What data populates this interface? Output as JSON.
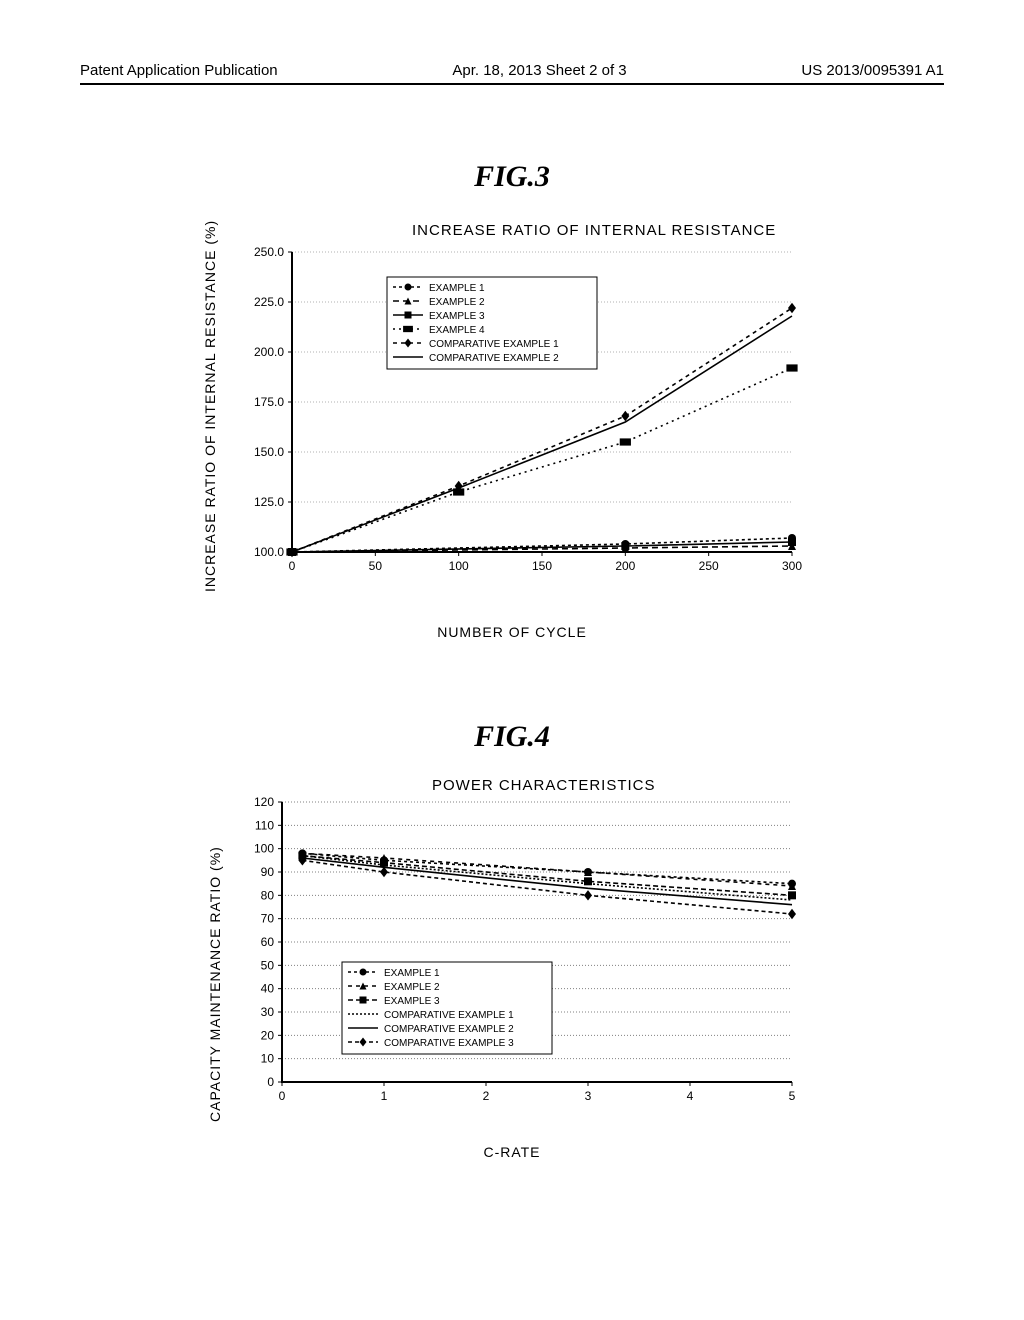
{
  "header": {
    "left": "Patent Application Publication",
    "mid": "Apr. 18, 2013  Sheet 2 of 3",
    "right": "US 2013/0095391 A1"
  },
  "fig3": {
    "label": "FIG.3",
    "chart": {
      "type": "line",
      "title": "INCREASE RATIO OF INTERNAL RESISTANCE",
      "ylabel": "INCREASE RATIO OF INTERNAL RESISTANCE (%)",
      "xlabel": "NUMBER OF CYCLE",
      "xlim": [
        0,
        300
      ],
      "ylim": [
        100,
        250
      ],
      "xtick_step": 50,
      "ytick_step": 25,
      "ytick_labels": [
        "100.0",
        "125.0",
        "150.0",
        "175.0",
        "200.0",
        "225.0",
        "250.0"
      ],
      "xtick_labels": [
        "0",
        "50",
        "100",
        "150",
        "200",
        "250",
        "300"
      ],
      "background_color": "#ffffff",
      "grid_color": "#b0b0b0",
      "axis_color": "#000000",
      "series": [
        {
          "name": "EXAMPLE 1",
          "color": "#000000",
          "dash": "3,3",
          "marker": "circle",
          "x": [
            0,
            200,
            300
          ],
          "y": [
            100,
            104,
            107
          ]
        },
        {
          "name": "EXAMPLE 2",
          "color": "#000000",
          "dash": "6,4",
          "marker": "triangle",
          "x": [
            0,
            200,
            300
          ],
          "y": [
            100,
            102,
            103
          ]
        },
        {
          "name": "EXAMPLE 3",
          "color": "#000000",
          "dash": "",
          "marker": "square",
          "x": [
            0,
            200,
            300
          ],
          "y": [
            100,
            103,
            105
          ]
        },
        {
          "name": "EXAMPLE 4",
          "color": "#000000",
          "dash": "2,4",
          "marker": "bigsquare",
          "x": [
            0,
            100,
            200,
            300
          ],
          "y": [
            100,
            130,
            155,
            192
          ]
        },
        {
          "name": "COMPARATIVE EXAMPLE 1",
          "color": "#000000",
          "dash": "4,4",
          "marker": "diamond",
          "x": [
            0,
            100,
            200,
            300
          ],
          "y": [
            100,
            133,
            168,
            222
          ]
        },
        {
          "name": "COMPARATIVE EXAMPLE 2",
          "color": "#000000",
          "dash": "",
          "marker": "",
          "x": [
            0,
            100,
            200,
            300
          ],
          "y": [
            100,
            132,
            165,
            218
          ]
        }
      ]
    }
  },
  "fig4": {
    "label": "FIG.4",
    "chart": {
      "type": "line",
      "title": "POWER CHARACTERISTICS",
      "ylabel": "CAPACITY MAINTENANCE RATIO (%)",
      "xlabel": "C-RATE",
      "xlim": [
        0,
        5
      ],
      "ylim": [
        0,
        120
      ],
      "xtick_step": 1,
      "ytick_step": 10,
      "ytick_labels": [
        "0",
        "10",
        "20",
        "30",
        "40",
        "50",
        "60",
        "70",
        "80",
        "90",
        "100",
        "110",
        "120"
      ],
      "xtick_labels": [
        "0",
        "1",
        "2",
        "3",
        "4",
        "5"
      ],
      "background_color": "#ffffff",
      "grid_color": "#808080",
      "axis_color": "#000000",
      "series": [
        {
          "name": "EXAMPLE 1",
          "color": "#000000",
          "dash": "3,3",
          "marker": "circle",
          "x": [
            0.2,
            1,
            1,
            3,
            5
          ],
          "y": [
            98,
            95,
            95,
            90,
            85
          ]
        },
        {
          "name": "EXAMPLE 2",
          "color": "#000000",
          "dash": "4,4",
          "marker": "triangle",
          "x": [
            0.2,
            1,
            3,
            5
          ],
          "y": [
            98,
            96,
            90,
            84
          ]
        },
        {
          "name": "EXAMPLE 3",
          "color": "#000000",
          "dash": "5,3",
          "marker": "square",
          "x": [
            0.2,
            1,
            3,
            5
          ],
          "y": [
            97,
            94,
            86,
            80
          ]
        },
        {
          "name": "COMPARATIVE EXAMPLE 1",
          "color": "#000000",
          "dash": "2,2",
          "marker": "",
          "x": [
            0.2,
            1,
            3,
            5
          ],
          "y": [
            97,
            93,
            85,
            78
          ]
        },
        {
          "name": "COMPARATIVE EXAMPLE 2",
          "color": "#000000",
          "dash": "",
          "marker": "",
          "x": [
            0.2,
            1,
            3,
            5
          ],
          "y": [
            96,
            92,
            83,
            76
          ]
        },
        {
          "name": "COMPARATIVE EXAMPLE 3",
          "color": "#000000",
          "dash": "4,3",
          "marker": "diamond",
          "x": [
            0.2,
            1,
            3,
            5
          ],
          "y": [
            95,
            90,
            80,
            72
          ]
        }
      ]
    }
  }
}
